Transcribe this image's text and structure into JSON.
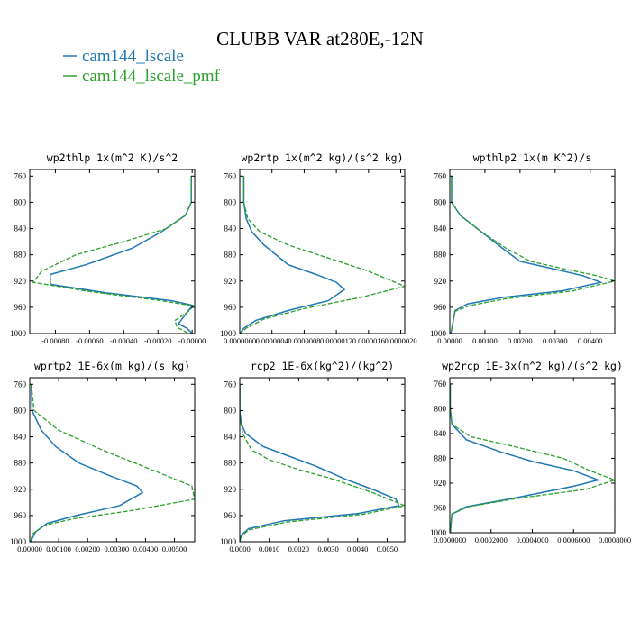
{
  "figure": {
    "title": "CLUBB VAR at280E,-12N",
    "legend": [
      {
        "name": "cam144_lscale",
        "color": "#1f77b4"
      },
      {
        "name": "cam144_lscale_pmf",
        "color": "#2ca02c"
      }
    ]
  },
  "chart_data": [
    {
      "type": "line",
      "title": "wp2thlp  1x(m^2 K)/s^2",
      "xlim": [
        -0.00095,
        1.5e-05
      ],
      "xticks": [
        -0.0008,
        -0.0006,
        -0.0004,
        -0.0002,
        0
      ],
      "xticklabels": [
        "-0.00080",
        "-0.00060",
        "-0.00040",
        "-0.00020",
        "-0.00000"
      ],
      "ylim": [
        1000,
        750
      ],
      "yticks": [
        760,
        800,
        840,
        880,
        920,
        960,
        1000
      ],
      "series": [
        {
          "name": "cam144_lscale",
          "color": "#1f77b4",
          "dashed": false,
          "points": [
            [
              -5e-06,
              760
            ],
            [
              -5e-06,
              800
            ],
            [
              -4e-05,
              820
            ],
            [
              -0.00018,
              845
            ],
            [
              -0.00035,
              870
            ],
            [
              -0.00062,
              895
            ],
            [
              -0.00083,
              910
            ],
            [
              -0.00083,
              925
            ],
            [
              -0.0005,
              938
            ],
            [
              -0.00012,
              950
            ],
            [
              3e-06,
              957
            ],
            [
              -3e-05,
              968
            ],
            [
              -8e-05,
              985
            ],
            [
              -3e-05,
              992
            ],
            [
              0,
              1000
            ]
          ]
        },
        {
          "name": "cam144_lscale_pmf",
          "color": "#2ca02c",
          "dashed": true,
          "points": [
            [
              -5e-06,
              760
            ],
            [
              -5e-06,
              800
            ],
            [
              -4e-05,
              820
            ],
            [
              -0.00015,
              840
            ],
            [
              -0.0004,
              860
            ],
            [
              -0.00068,
              880
            ],
            [
              -0.00088,
              905
            ],
            [
              -0.00093,
              922
            ],
            [
              -0.0006,
              936
            ],
            [
              -0.00018,
              950
            ],
            [
              8e-06,
              958
            ],
            [
              -2e-05,
              966
            ],
            [
              -0.0001,
              980
            ],
            [
              -9e-05,
              990
            ],
            [
              -2e-05,
              1000
            ]
          ]
        }
      ]
    },
    {
      "type": "line",
      "title": "wp2rtp  1x(m^2 kg)/(s^2 kg)",
      "xlim": [
        0,
        2.05e-06
      ],
      "xticks": [
        0,
        4e-07,
        8e-07,
        1.2e-06,
        1.6e-06,
        2e-06
      ],
      "xticklabels": [
        "0.0000000",
        "0.0000004",
        "0.0000008",
        "0.0000012",
        "0.0000016",
        "0.0000020"
      ],
      "ylim": [
        1000,
        750
      ],
      "yticks": [
        760,
        800,
        840,
        880,
        920,
        960,
        1000
      ],
      "series": [
        {
          "name": "cam144_lscale",
          "color": "#1f77b4",
          "dashed": false,
          "points": [
            [
              5e-08,
              760
            ],
            [
              5e-08,
              800
            ],
            [
              8e-08,
              825
            ],
            [
              1.5e-07,
              845
            ],
            [
              3e-07,
              865
            ],
            [
              4.5e-07,
              880
            ],
            [
              6e-07,
              895
            ],
            [
              9.5e-07,
              910
            ],
            [
              1.2e-06,
              922
            ],
            [
              1.3e-06,
              933
            ],
            [
              1.1e-06,
              950
            ],
            [
              6e-07,
              965
            ],
            [
              2e-07,
              980
            ],
            [
              5e-08,
              992
            ],
            [
              0,
              1000
            ]
          ]
        },
        {
          "name": "cam144_lscale_pmf",
          "color": "#2ca02c",
          "dashed": true,
          "points": [
            [
              5e-08,
              760
            ],
            [
              5e-08,
              800
            ],
            [
              1e-07,
              825
            ],
            [
              2.5e-07,
              845
            ],
            [
              6e-07,
              865
            ],
            [
              1.1e-06,
              885
            ],
            [
              1.6e-06,
              905
            ],
            [
              2.05e-06,
              928
            ],
            [
              1.5e-06,
              945
            ],
            [
              8e-07,
              962
            ],
            [
              3e-07,
              978
            ],
            [
              8e-08,
              992
            ],
            [
              0,
              1000
            ]
          ]
        }
      ]
    },
    {
      "type": "line",
      "title": "wpthlp2  1x(m K^2)/s",
      "xlim": [
        0,
        0.0047
      ],
      "xticks": [
        0,
        0.001,
        0.002,
        0.003,
        0.004
      ],
      "xticklabels": [
        "0.00000",
        "0.00100",
        "0.00200",
        "0.00300",
        "0.00400"
      ],
      "ylim": [
        1000,
        750
      ],
      "yticks": [
        760,
        800,
        840,
        880,
        920,
        960,
        1000
      ],
      "series": [
        {
          "name": "cam144_lscale",
          "color": "#1f77b4",
          "dashed": false,
          "points": [
            [
              5e-05,
              760
            ],
            [
              5e-05,
              800
            ],
            [
              0.0003,
              820
            ],
            [
              0.0009,
              845
            ],
            [
              0.0015,
              870
            ],
            [
              0.002,
              890
            ],
            [
              0.003,
              902
            ],
            [
              0.0038,
              912
            ],
            [
              0.0043,
              922
            ],
            [
              0.0032,
              935
            ],
            [
              0.0015,
              945
            ],
            [
              0.0005,
              955
            ],
            [
              0.00015,
              965
            ],
            [
              3e-05,
              1000
            ]
          ]
        },
        {
          "name": "cam144_lscale_pmf",
          "color": "#2ca02c",
          "dashed": true,
          "points": [
            [
              5e-05,
              760
            ],
            [
              5e-05,
              800
            ],
            [
              0.0003,
              820
            ],
            [
              0.0009,
              845
            ],
            [
              0.0016,
              870
            ],
            [
              0.0023,
              890
            ],
            [
              0.0033,
              902
            ],
            [
              0.0042,
              912
            ],
            [
              0.0047,
              920
            ],
            [
              0.0035,
              935
            ],
            [
              0.0016,
              947
            ],
            [
              0.0006,
              957
            ],
            [
              0.00015,
              966
            ],
            [
              3e-05,
              1000
            ]
          ]
        }
      ]
    },
    {
      "type": "line",
      "title": "wprtp2  1E-6x(m kg)/(s kg)",
      "xlim": [
        0,
        0.0057
      ],
      "xticks": [
        0,
        0.001,
        0.002,
        0.003,
        0.004,
        0.005
      ],
      "xticklabels": [
        "0.00000",
        "0.00100",
        "0.00200",
        "0.00300",
        "0.00400",
        "0.00500"
      ],
      "ylim": [
        1000,
        750
      ],
      "yticks": [
        760,
        800,
        840,
        880,
        920,
        960,
        1000
      ],
      "series": [
        {
          "name": "cam144_lscale",
          "color": "#1f77b4",
          "dashed": false,
          "points": [
            [
              5e-05,
              760
            ],
            [
              8e-05,
              800
            ],
            [
              0.0004,
              830
            ],
            [
              0.0009,
              855
            ],
            [
              0.0017,
              880
            ],
            [
              0.0028,
              900
            ],
            [
              0.0037,
              915
            ],
            [
              0.0039,
              925
            ],
            [
              0.0031,
              945
            ],
            [
              0.0016,
              960
            ],
            [
              0.0006,
              972
            ],
            [
              0.0002,
              985
            ],
            [
              3e-05,
              1000
            ]
          ]
        },
        {
          "name": "cam144_lscale_pmf",
          "color": "#2ca02c",
          "dashed": true,
          "points": [
            [
              5e-05,
              760
            ],
            [
              0.00015,
              800
            ],
            [
              0.001,
              830
            ],
            [
              0.0025,
              860
            ],
            [
              0.0042,
              890
            ],
            [
              0.0056,
              915
            ],
            [
              0.0057,
              935
            ],
            [
              0.0036,
              952
            ],
            [
              0.0015,
              965
            ],
            [
              0.0005,
              975
            ],
            [
              0.0001,
              988
            ],
            [
              2e-05,
              1000
            ]
          ]
        }
      ]
    },
    {
      "type": "line",
      "title": "rcp2  1E-6x(kg^2)/(kg^2)",
      "xlim": [
        0,
        0.0056
      ],
      "xticks": [
        0,
        0.001,
        0.002,
        0.003,
        0.004,
        0.005
      ],
      "xticklabels": [
        "0.0000",
        "0.0010",
        "0.0020",
        "0.0030",
        "0.0040",
        "0.0050"
      ],
      "ylim": [
        1000,
        750
      ],
      "yticks": [
        760,
        800,
        840,
        880,
        920,
        960,
        1000
      ],
      "series": [
        {
          "name": "cam144_lscale",
          "color": "#1f77b4",
          "dashed": false,
          "points": [
            [
              0,
              760
            ],
            [
              0,
              800
            ],
            [
              5e-05,
              820
            ],
            [
              0.0002,
              835
            ],
            [
              0.0008,
              855
            ],
            [
              0.0017,
              870
            ],
            [
              0.0026,
              885
            ],
            [
              0.0036,
              905
            ],
            [
              0.0045,
              920
            ],
            [
              0.0053,
              935
            ],
            [
              0.0054,
              945
            ],
            [
              0.004,
              957
            ],
            [
              0.0015,
              968
            ],
            [
              0.0003,
              980
            ],
            [
              5e-05,
              990
            ],
            [
              0,
              1000
            ]
          ]
        },
        {
          "name": "cam144_lscale_pmf",
          "color": "#2ca02c",
          "dashed": true,
          "points": [
            [
              0,
              760
            ],
            [
              0,
              810
            ],
            [
              0.0001,
              835
            ],
            [
              0.0004,
              860
            ],
            [
              0.001,
              875
            ],
            [
              0.002,
              890
            ],
            [
              0.0032,
              905
            ],
            [
              0.0045,
              925
            ],
            [
              0.0056,
              945
            ],
            [
              0.0042,
              958
            ],
            [
              0.0016,
              970
            ],
            [
              0.0003,
              982
            ],
            [
              5e-05,
              992
            ],
            [
              0,
              1000
            ]
          ]
        }
      ]
    },
    {
      "type": "line",
      "title": "wp2rcp  1E-3x(m^2 kg)/(s^2 kg)",
      "xlim": [
        0,
        0.0008
      ],
      "xticks": [
        0,
        0.0002,
        0.0004,
        0.0006,
        0.0008
      ],
      "xticklabels": [
        "0.0000000",
        "0.0002000",
        "0.0004000",
        "0.0006000",
        "0.0008000"
      ],
      "ylim": [
        1000,
        750
      ],
      "yticks": [
        760,
        800,
        840,
        880,
        920,
        960,
        1000
      ],
      "series": [
        {
          "name": "cam144_lscale",
          "color": "#1f77b4",
          "dashed": false,
          "points": [
            [
              2e-06,
              760
            ],
            [
              2e-06,
              800
            ],
            [
              1e-05,
              825
            ],
            [
              8e-05,
              850
            ],
            [
              0.00025,
              870
            ],
            [
              0.0004,
              885
            ],
            [
              0.0006,
              900
            ],
            [
              0.00072,
              915
            ],
            [
              0.0006,
              925
            ],
            [
              0.0003,
              945
            ],
            [
              8e-05,
              958
            ],
            [
              1e-05,
              970
            ],
            [
              2e-06,
              1000
            ]
          ]
        },
        {
          "name": "cam144_lscale_pmf",
          "color": "#2ca02c",
          "dashed": true,
          "points": [
            [
              2e-06,
              760
            ],
            [
              2e-06,
              800
            ],
            [
              1e-05,
              825
            ],
            [
              0.0001,
              845
            ],
            [
              0.0003,
              860
            ],
            [
              0.00055,
              880
            ],
            [
              0.00068,
              900
            ],
            [
              0.0008,
              915
            ],
            [
              0.00066,
              930
            ],
            [
              0.00032,
              945
            ],
            [
              9e-05,
              958
            ],
            [
              1e-05,
              970
            ],
            [
              2e-06,
              1000
            ]
          ]
        }
      ]
    }
  ]
}
